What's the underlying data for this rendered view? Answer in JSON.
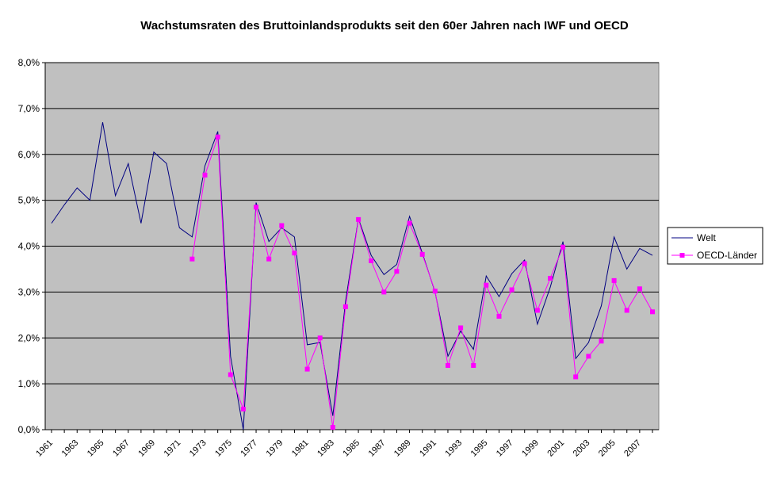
{
  "chart_data": {
    "type": "line",
    "title": "Wachstumsraten des Bruttoinlandsprodukts seit den 60er Jahren nach IWF und OECD",
    "xlabel": "",
    "ylabel": "",
    "ylim": [
      0,
      8
    ],
    "y_ticks": [
      "0,0%",
      "1,0%",
      "2,0%",
      "3,0%",
      "4,0%",
      "5,0%",
      "6,0%",
      "7,0%",
      "8,0%"
    ],
    "x_tick_labels": [
      "1961",
      "1963",
      "1965",
      "1967",
      "1969",
      "1971",
      "1973",
      "1975",
      "1977",
      "1979",
      "1981",
      "1983",
      "1985",
      "1987",
      "1989",
      "1991",
      "1993",
      "1995",
      "1997",
      "1999",
      "2001",
      "2003",
      "2005",
      "2007"
    ],
    "x": [
      1961,
      1962,
      1963,
      1964,
      1965,
      1966,
      1967,
      1968,
      1969,
      1970,
      1971,
      1972,
      1973,
      1974,
      1975,
      1976,
      1977,
      1978,
      1979,
      1980,
      1981,
      1982,
      1983,
      1984,
      1985,
      1986,
      1987,
      1988,
      1989,
      1990,
      1991,
      1992,
      1993,
      1994,
      1995,
      1996,
      1997,
      1998,
      1999,
      2000,
      2001,
      2002,
      2003,
      2004,
      2005,
      2006,
      2007,
      2008
    ],
    "grid": true,
    "legend": "right",
    "plot_background": "#c0c0c0",
    "series": [
      {
        "name": "Welt",
        "color": "#000080",
        "marker": "none",
        "values": [
          4.5,
          4.9,
          5.27,
          5.0,
          6.7,
          5.1,
          5.8,
          4.5,
          6.05,
          5.8,
          4.4,
          4.2,
          5.75,
          6.5,
          1.6,
          0.0,
          4.95,
          4.1,
          4.4,
          4.2,
          1.85,
          1.9,
          0.3,
          2.8,
          4.6,
          3.8,
          3.38,
          3.6,
          4.65,
          3.85,
          3.0,
          1.6,
          2.15,
          1.75,
          3.35,
          2.9,
          3.4,
          3.7,
          2.3,
          3.1,
          4.1,
          1.55,
          1.9,
          2.7,
          4.2,
          3.5,
          3.95,
          3.8
        ]
      },
      {
        "name": "OECD-Länder",
        "color": "#ff00ff",
        "marker": "square",
        "values": [
          null,
          null,
          null,
          null,
          null,
          null,
          null,
          null,
          null,
          null,
          null,
          3.72,
          5.55,
          6.38,
          1.2,
          0.45,
          4.85,
          3.72,
          4.45,
          3.85,
          1.32,
          2.0,
          0.05,
          2.68,
          4.58,
          3.68,
          3.0,
          3.45,
          4.5,
          3.82,
          3.02,
          1.4,
          2.22,
          1.4,
          3.15,
          2.47,
          3.05,
          3.62,
          2.6,
          3.3,
          3.98,
          1.15,
          1.6,
          1.93,
          3.25,
          2.6,
          3.07,
          2.57
        ]
      }
    ]
  }
}
